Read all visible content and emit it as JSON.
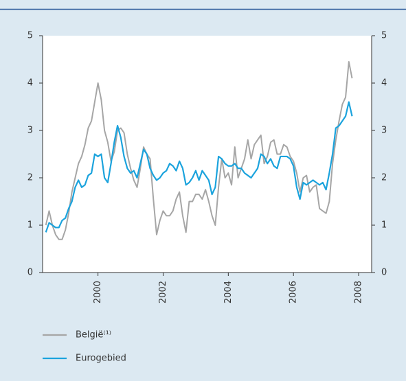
{
  "chart_data": {
    "type": "line",
    "x": [
      1998.4,
      1998.5,
      1998.6,
      1998.7,
      1998.8,
      1998.9,
      1999.0,
      1999.1,
      1999.2,
      1999.3,
      1999.4,
      1999.5,
      1999.6,
      1999.7,
      1999.8,
      1999.9,
      2000.0,
      2000.1,
      2000.2,
      2000.3,
      2000.4,
      2000.5,
      2000.6,
      2000.7,
      2000.8,
      2000.9,
      2001.0,
      2001.1,
      2001.2,
      2001.3,
      2001.4,
      2001.5,
      2001.6,
      2001.7,
      2001.8,
      2001.9,
      2002.0,
      2002.1,
      2002.2,
      2002.3,
      2002.4,
      2002.5,
      2002.6,
      2002.7,
      2002.8,
      2002.9,
      2003.0,
      2003.1,
      2003.2,
      2003.3,
      2003.4,
      2003.5,
      2003.6,
      2003.7,
      2003.8,
      2003.9,
      2004.0,
      2004.1,
      2004.2,
      2004.3,
      2004.4,
      2004.5,
      2004.6,
      2004.7,
      2004.8,
      2004.9,
      2005.0,
      2005.1,
      2005.2,
      2005.3,
      2005.4,
      2005.5,
      2005.6,
      2005.7,
      2005.8,
      2005.9,
      2006.0,
      2006.1,
      2006.2,
      2006.3,
      2006.4,
      2006.5,
      2006.6,
      2006.7,
      2006.8,
      2006.9,
      2007.0,
      2007.1,
      2007.2,
      2007.3,
      2007.4,
      2007.5,
      2007.6,
      2007.7,
      2007.8
    ],
    "series": [
      {
        "name": "België⁽¹⁾",
        "color": "#a6a6a6",
        "values": [
          1.0,
          1.3,
          1.0,
          0.8,
          0.7,
          0.7,
          0.9,
          1.25,
          1.7,
          2.0,
          2.3,
          2.45,
          2.7,
          3.05,
          3.2,
          3.6,
          4.0,
          3.65,
          3.0,
          2.75,
          2.35,
          2.55,
          3.0,
          3.05,
          2.95,
          2.5,
          2.2,
          1.95,
          1.8,
          2.2,
          2.65,
          2.5,
          2.4,
          1.55,
          0.8,
          1.1,
          1.3,
          1.2,
          1.2,
          1.3,
          1.55,
          1.7,
          1.2,
          0.85,
          1.5,
          1.5,
          1.65,
          1.65,
          1.55,
          1.75,
          1.5,
          1.2,
          1.0,
          1.8,
          2.4,
          2.0,
          2.1,
          1.85,
          2.65,
          2.0,
          2.2,
          2.4,
          2.8,
          2.4,
          2.7,
          2.8,
          2.9,
          2.3,
          2.45,
          2.75,
          2.8,
          2.5,
          2.5,
          2.7,
          2.65,
          2.45,
          2.35,
          2.1,
          1.7,
          2.0,
          2.05,
          1.7,
          1.8,
          1.85,
          1.35,
          1.3,
          1.25,
          1.5,
          2.3,
          2.8,
          3.2,
          3.55,
          3.7,
          4.45,
          4.1
        ]
      },
      {
        "name": "Eurogebied",
        "color": "#1ba3dd",
        "values": [
          0.85,
          1.05,
          1.0,
          0.95,
          0.95,
          1.1,
          1.15,
          1.35,
          1.5,
          1.8,
          1.95,
          1.8,
          1.85,
          2.05,
          2.1,
          2.5,
          2.45,
          2.5,
          2.0,
          1.9,
          2.3,
          2.75,
          3.1,
          2.85,
          2.45,
          2.2,
          2.1,
          2.15,
          2.0,
          2.3,
          2.6,
          2.5,
          2.2,
          2.05,
          1.95,
          2.0,
          2.1,
          2.15,
          2.3,
          2.25,
          2.15,
          2.35,
          2.2,
          1.85,
          1.9,
          2.0,
          2.15,
          1.95,
          2.15,
          2.05,
          1.95,
          1.65,
          1.8,
          2.45,
          2.4,
          2.3,
          2.25,
          2.25,
          2.3,
          2.2,
          2.2,
          2.1,
          2.05,
          2.0,
          2.1,
          2.2,
          2.5,
          2.45,
          2.3,
          2.4,
          2.25,
          2.2,
          2.45,
          2.45,
          2.45,
          2.4,
          2.25,
          1.8,
          1.55,
          1.9,
          1.85,
          1.9,
          1.95,
          1.9,
          1.85,
          1.9,
          1.75,
          2.1,
          2.5,
          3.05,
          3.1,
          3.2,
          3.3,
          3.6,
          3.3
        ]
      }
    ],
    "xlim": [
      1998.3,
      2008.4
    ],
    "xticks": [
      2000,
      2002,
      2004,
      2006,
      2008
    ],
    "ylim": [
      0,
      5
    ],
    "yticks": [
      0,
      1,
      2,
      3,
      4,
      5
    ],
    "y2lim": [
      0,
      5
    ],
    "y2ticks": [
      0,
      1,
      2,
      3,
      4,
      5
    ],
    "grid": false
  }
}
